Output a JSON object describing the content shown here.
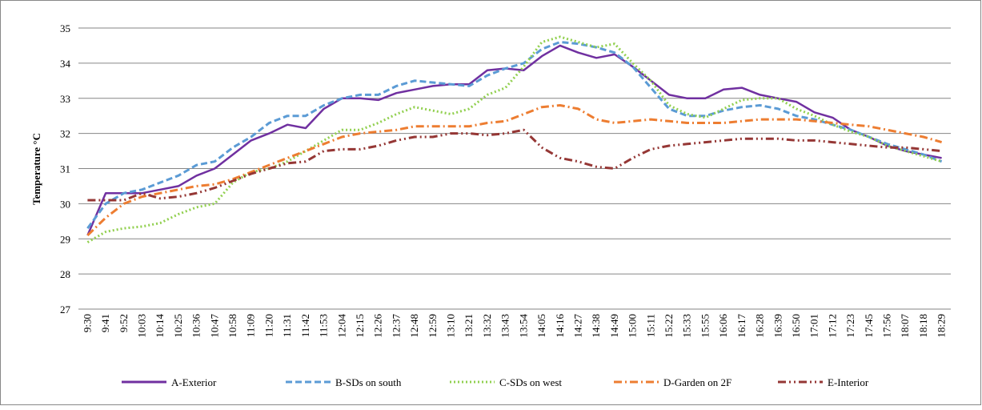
{
  "chart_data": {
    "type": "line",
    "y_label": "Temperature °C",
    "categories": [
      "9:30",
      "9:41",
      "9:52",
      "10:03",
      "10:14",
      "10:25",
      "10:36",
      "10:47",
      "10:58",
      "11:09",
      "11:20",
      "11:31",
      "11:42",
      "11:53",
      "12:04",
      "12:15",
      "12:26",
      "12:37",
      "12:48",
      "12:59",
      "13:10",
      "13:21",
      "13:32",
      "13:43",
      "13:54",
      "14:05",
      "14:16",
      "14:27",
      "14:38",
      "14:49",
      "15:00",
      "15:11",
      "15:22",
      "15:33",
      "15:55",
      "16:06",
      "16:17",
      "16:28",
      "16:39",
      "16:50",
      "17:01",
      "17:12",
      "17:23",
      "17:45",
      "17:56",
      "18:07",
      "18:18",
      "18:29"
    ],
    "series": [
      {
        "name": "A-Exterior",
        "color": "#7030a0",
        "dash": "solid",
        "values": [
          29.1,
          30.3,
          30.3,
          30.3,
          30.4,
          30.5,
          30.8,
          31.0,
          31.4,
          31.8,
          32.0,
          32.25,
          32.15,
          32.7,
          33.0,
          33.0,
          32.95,
          33.15,
          33.25,
          33.35,
          33.4,
          33.4,
          33.8,
          33.85,
          33.8,
          34.2,
          34.5,
          34.3,
          34.15,
          34.25,
          33.9,
          33.5,
          33.1,
          33.0,
          33.0,
          33.25,
          33.3,
          33.1,
          33.0,
          32.9,
          32.6,
          32.45,
          32.1,
          31.9,
          31.65,
          31.5,
          31.4,
          31.3
        ]
      },
      {
        "name": "B-SDs on south",
        "color": "#5b9bd5",
        "dash": "dash",
        "values": [
          29.3,
          30.0,
          30.3,
          30.4,
          30.6,
          30.8,
          31.1,
          31.2,
          31.6,
          31.9,
          32.3,
          32.5,
          32.5,
          32.8,
          33.0,
          33.1,
          33.1,
          33.35,
          33.5,
          33.45,
          33.4,
          33.35,
          33.65,
          33.85,
          34.0,
          34.4,
          34.6,
          34.55,
          34.45,
          34.3,
          33.9,
          33.3,
          32.7,
          32.5,
          32.5,
          32.65,
          32.75,
          32.8,
          32.7,
          32.5,
          32.4,
          32.25,
          32.1,
          31.9,
          31.7,
          31.55,
          31.4,
          31.2
        ]
      },
      {
        "name": "C-SDs on west",
        "color": "#92d050",
        "dash": "dot",
        "values": [
          28.9,
          29.2,
          29.3,
          29.35,
          29.45,
          29.7,
          29.9,
          30.0,
          30.6,
          30.9,
          31.0,
          31.2,
          31.5,
          31.8,
          32.1,
          32.1,
          32.3,
          32.55,
          32.75,
          32.65,
          32.55,
          32.7,
          33.1,
          33.3,
          33.9,
          34.6,
          34.75,
          34.6,
          34.45,
          34.55,
          34.0,
          33.5,
          32.8,
          32.55,
          32.45,
          32.7,
          32.95,
          33.0,
          33.0,
          32.7,
          32.5,
          32.25,
          32.05,
          31.9,
          31.65,
          31.5,
          31.35,
          31.2
        ]
      },
      {
        "name": "D-Garden on 2F",
        "color": "#ed7d31",
        "dash": "dashdot",
        "values": [
          29.1,
          29.6,
          30.0,
          30.2,
          30.3,
          30.4,
          30.5,
          30.55,
          30.7,
          30.9,
          31.1,
          31.3,
          31.5,
          31.7,
          31.9,
          32.0,
          32.05,
          32.1,
          32.2,
          32.2,
          32.2,
          32.2,
          32.3,
          32.35,
          32.55,
          32.75,
          32.8,
          32.7,
          32.4,
          32.3,
          32.35,
          32.4,
          32.35,
          32.3,
          32.3,
          32.3,
          32.35,
          32.4,
          32.4,
          32.4,
          32.35,
          32.3,
          32.25,
          32.2,
          32.1,
          32.0,
          31.9,
          31.75
        ]
      },
      {
        "name": "E-Interior",
        "color": "#953735",
        "dash": "dashdotdot",
        "values": [
          30.1,
          30.1,
          30.1,
          30.3,
          30.15,
          30.2,
          30.3,
          30.45,
          30.65,
          30.85,
          31.0,
          31.15,
          31.2,
          31.5,
          31.55,
          31.55,
          31.65,
          31.8,
          31.9,
          31.9,
          32.0,
          32.0,
          31.95,
          32.0,
          32.1,
          31.6,
          31.3,
          31.2,
          31.05,
          31.0,
          31.3,
          31.55,
          31.65,
          31.7,
          31.75,
          31.8,
          31.85,
          31.85,
          31.85,
          31.8,
          31.8,
          31.75,
          31.7,
          31.65,
          31.6,
          31.6,
          31.55,
          31.5
        ]
      }
    ],
    "ylim": [
      27,
      35
    ],
    "yticks": [
      27,
      28,
      29,
      30,
      31,
      32,
      33,
      34,
      35
    ],
    "grid": true,
    "legend": "bottom"
  }
}
